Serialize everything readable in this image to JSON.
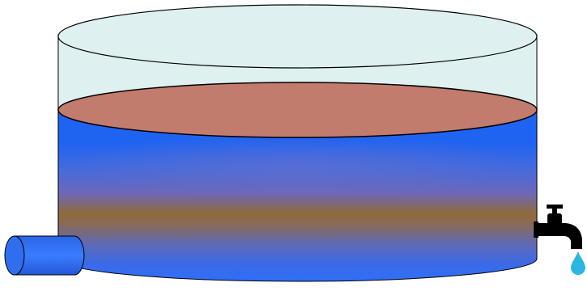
{
  "diagram": {
    "components": [
      "water-tank",
      "inlet-pipe",
      "outlet-faucet",
      "water-drop"
    ],
    "colors": {
      "background": "#ffffff",
      "tank_glass": "#dff0f0",
      "water_blue": "#1d63f2",
      "water_blue_light": "#3a7cff",
      "water_surface": "#c17c6d",
      "sediment_band": "#8e6a3c",
      "inlet_pipe": "#2f6fef",
      "faucet": "#000000",
      "water_drop": "#2cb6e0",
      "outline": "#000000"
    }
  }
}
